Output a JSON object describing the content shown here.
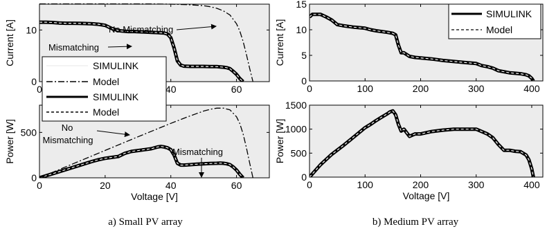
{
  "figure": {
    "caption_a": "a) Small PV array",
    "caption_b": "b) Medium PV array"
  },
  "legends": {
    "a_top": [
      "SIMULINK",
      "Model",
      "SIMULINK",
      "Model"
    ],
    "b_top": [
      "SIMULINK",
      "Model"
    ]
  },
  "annotations": {
    "no_mismatching": "No Mismatching",
    "mismatching": "Mismatching",
    "no": "No",
    "mismatching2": "Mismatching",
    "mismatching3": "Mismatching"
  },
  "chart_data": [
    {
      "type": "line",
      "panel": "a-top",
      "xlabel": "",
      "ylabel": "Current [A]",
      "xlim": [
        0,
        70
      ],
      "ylim": [
        0,
        15
      ],
      "xticks": [
        0,
        20,
        40,
        60
      ],
      "yticks": [
        0,
        10
      ],
      "grid": false,
      "legend_position": "left-center",
      "series": [
        {
          "name": "SIMULINK",
          "style": "solid-black-thick",
          "x": [
            0,
            2,
            4,
            5,
            6,
            8,
            10,
            12,
            14,
            16,
            18,
            20,
            22,
            24,
            25,
            27,
            28,
            29,
            30,
            32,
            34,
            36,
            38,
            39,
            40,
            41,
            42,
            43,
            44,
            46,
            48,
            50,
            52,
            54,
            55,
            56,
            57,
            58,
            59,
            60,
            61,
            62
          ],
          "y": [
            11.5,
            11.5,
            11.45,
            11.4,
            11.35,
            11.3,
            11.3,
            11.28,
            11.25,
            11.2,
            11.1,
            10.9,
            10.3,
            9.9,
            9.8,
            9.7,
            9.7,
            9.7,
            9.65,
            9.6,
            9.55,
            9.5,
            9.4,
            9.2,
            8.5,
            6.5,
            4.0,
            3.2,
            3.0,
            2.95,
            2.95,
            2.95,
            2.9,
            2.9,
            2.85,
            2.8,
            2.7,
            2.5,
            2.0,
            1.4,
            0.6,
            0.0
          ]
        },
        {
          "name": "Model",
          "style": "dashed-white",
          "x": [
            0,
            2,
            4,
            5,
            6,
            8,
            10,
            12,
            14,
            16,
            18,
            20,
            22,
            24,
            25,
            27,
            28,
            29,
            30,
            32,
            34,
            36,
            38,
            39,
            40,
            41,
            42,
            43,
            44,
            46,
            48,
            50,
            52,
            54,
            55,
            56,
            57,
            58,
            59,
            60,
            61,
            62
          ],
          "y": [
            11.5,
            11.5,
            11.45,
            11.4,
            11.35,
            11.3,
            11.3,
            11.28,
            11.25,
            11.2,
            11.1,
            10.9,
            10.3,
            9.9,
            9.8,
            9.7,
            9.7,
            9.7,
            9.65,
            9.6,
            9.55,
            9.5,
            9.4,
            9.2,
            8.5,
            6.5,
            4.0,
            3.2,
            3.0,
            2.95,
            2.95,
            2.95,
            2.9,
            2.9,
            2.85,
            2.8,
            2.7,
            2.5,
            2.0,
            1.4,
            0.6,
            0.0
          ]
        },
        {
          "name": "No Mismatching",
          "style": "dashdot-black",
          "x": [
            0,
            10,
            20,
            30,
            40,
            45,
            50,
            52,
            54,
            56,
            58,
            60,
            61,
            62,
            63,
            64,
            65
          ],
          "y": [
            15.1,
            15.1,
            15.1,
            15.08,
            15.0,
            14.9,
            14.7,
            14.5,
            14.2,
            13.7,
            12.9,
            11.2,
            9.8,
            7.8,
            5.3,
            2.6,
            0.0
          ]
        }
      ]
    },
    {
      "type": "line",
      "panel": "a-bottom",
      "xlabel": "Voltage [V]",
      "ylabel": "Power [W]",
      "xlim": [
        0,
        70
      ],
      "ylim": [
        0,
        800
      ],
      "xticks": [
        0,
        20,
        40,
        60
      ],
      "yticks": [
        0,
        500
      ],
      "grid": false,
      "series": [
        {
          "name": "SIMULINK",
          "style": "solid-black-thick",
          "x": [
            0,
            4,
            8,
            12,
            16,
            18,
            20,
            22,
            24,
            26,
            28,
            30,
            32,
            34,
            36,
            37,
            38,
            39,
            40,
            41,
            42,
            43,
            44,
            46,
            48,
            50,
            52,
            54,
            55,
            56,
            57,
            58,
            59,
            60,
            61,
            62
          ],
          "y": [
            0,
            45,
            90,
            135,
            180,
            200,
            215,
            225,
            235,
            270,
            290,
            300,
            310,
            320,
            340,
            345,
            340,
            330,
            310,
            250,
            160,
            140,
            140,
            145,
            150,
            155,
            158,
            160,
            162,
            160,
            155,
            145,
            120,
            85,
            40,
            0
          ]
        },
        {
          "name": "Model",
          "style": "dashed-white",
          "x": [
            0,
            4,
            8,
            12,
            16,
            18,
            20,
            22,
            24,
            26,
            28,
            30,
            32,
            34,
            36,
            37,
            38,
            39,
            40,
            41,
            42,
            43,
            44,
            46,
            48,
            50,
            52,
            54,
            55,
            56,
            57,
            58,
            59,
            60,
            61,
            62
          ],
          "y": [
            0,
            45,
            90,
            135,
            180,
            200,
            215,
            225,
            235,
            270,
            290,
            300,
            310,
            320,
            340,
            345,
            340,
            330,
            310,
            250,
            160,
            140,
            140,
            145,
            150,
            155,
            158,
            160,
            162,
            160,
            155,
            145,
            120,
            85,
            40,
            0
          ]
        },
        {
          "name": "No Mismatching",
          "style": "dashdot-black",
          "x": [
            0,
            10,
            20,
            30,
            40,
            45,
            50,
            52,
            54,
            56,
            58,
            60,
            61,
            62,
            63,
            64,
            65
          ],
          "y": [
            0,
            151,
            302,
            452,
            600,
            670,
            735,
            754,
            767,
            767,
            748,
            672,
            598,
            484,
            334,
            166,
            0
          ]
        }
      ]
    },
    {
      "type": "line",
      "panel": "b-top",
      "xlabel": "",
      "ylabel": "Current [A]",
      "xlim": [
        0,
        420
      ],
      "ylim": [
        0,
        15
      ],
      "xticks": [
        0,
        100,
        200,
        300,
        400
      ],
      "yticks": [
        0,
        5,
        10,
        15
      ],
      "grid": false,
      "legend_position": "top-right",
      "series": [
        {
          "name": "SIMULINK",
          "style": "solid-black-thick",
          "x": [
            0,
            5,
            20,
            30,
            40,
            50,
            60,
            80,
            100,
            110,
            120,
            140,
            150,
            155,
            160,
            165,
            170,
            180,
            190,
            200,
            220,
            240,
            260,
            280,
            300,
            310,
            320,
            330,
            340,
            350,
            360,
            370,
            380,
            390,
            395,
            400,
            403
          ],
          "y": [
            12.5,
            13.0,
            13.0,
            12.5,
            11.9,
            11.0,
            10.8,
            10.5,
            10.3,
            10.0,
            9.8,
            9.5,
            9.3,
            9.0,
            7.0,
            5.5,
            5.5,
            4.8,
            4.6,
            4.5,
            4.3,
            4.0,
            3.8,
            3.6,
            3.4,
            3.0,
            2.8,
            2.5,
            2.0,
            1.8,
            1.6,
            1.5,
            1.4,
            1.2,
            1.0,
            0.5,
            0.0
          ]
        },
        {
          "name": "Model",
          "style": "dashed-white",
          "x": [
            0,
            5,
            20,
            30,
            40,
            50,
            60,
            80,
            100,
            110,
            120,
            140,
            150,
            155,
            160,
            165,
            170,
            180,
            190,
            200,
            220,
            240,
            260,
            280,
            300,
            310,
            320,
            330,
            340,
            350,
            360,
            370,
            380,
            390,
            395,
            400,
            403
          ],
          "y": [
            12.5,
            13.0,
            13.0,
            12.5,
            11.9,
            11.0,
            10.8,
            10.5,
            10.3,
            10.0,
            9.8,
            9.5,
            9.3,
            9.0,
            7.0,
            5.5,
            5.5,
            4.8,
            4.6,
            4.5,
            4.3,
            4.0,
            3.8,
            3.6,
            3.4,
            3.0,
            2.8,
            2.5,
            2.0,
            1.8,
            1.6,
            1.5,
            1.4,
            1.2,
            1.0,
            0.5,
            0.0
          ]
        }
      ]
    },
    {
      "type": "line",
      "panel": "b-bottom",
      "xlabel": "Voltage [V]",
      "ylabel": "Power [W]",
      "xlim": [
        0,
        420
      ],
      "ylim": [
        0,
        1500
      ],
      "xticks": [
        0,
        100,
        200,
        300,
        400
      ],
      "yticks": [
        0,
        500,
        1000,
        1500
      ],
      "grid": false,
      "series": [
        {
          "name": "SIMULINK",
          "style": "solid-black-thick",
          "x": [
            0,
            10,
            20,
            40,
            60,
            80,
            100,
            110,
            120,
            130,
            140,
            145,
            150,
            155,
            160,
            165,
            170,
            180,
            190,
            200,
            220,
            240,
            260,
            280,
            300,
            310,
            320,
            330,
            340,
            350,
            360,
            370,
            380,
            390,
            395,
            400,
            403
          ],
          "y": [
            0,
            130,
            260,
            475,
            650,
            840,
            1030,
            1100,
            1180,
            1250,
            1320,
            1360,
            1380,
            1300,
            1100,
            960,
            1000,
            850,
            900,
            900,
            950,
            980,
            1000,
            1000,
            1000,
            950,
            900,
            820,
            680,
            560,
            560,
            540,
            530,
            460,
            360,
            170,
            0
          ]
        },
        {
          "name": "Model",
          "style": "dashed-white",
          "x": [
            0,
            10,
            20,
            40,
            60,
            80,
            100,
            110,
            120,
            130,
            140,
            145,
            150,
            155,
            160,
            165,
            170,
            180,
            190,
            200,
            220,
            240,
            260,
            280,
            300,
            310,
            320,
            330,
            340,
            350,
            360,
            370,
            380,
            390,
            395,
            400,
            403
          ],
          "y": [
            0,
            130,
            260,
            475,
            650,
            840,
            1030,
            1100,
            1180,
            1250,
            1320,
            1360,
            1380,
            1300,
            1100,
            960,
            1000,
            850,
            900,
            900,
            950,
            980,
            1000,
            1000,
            1000,
            950,
            900,
            820,
            680,
            560,
            560,
            540,
            530,
            460,
            360,
            170,
            0
          ]
        }
      ]
    }
  ]
}
